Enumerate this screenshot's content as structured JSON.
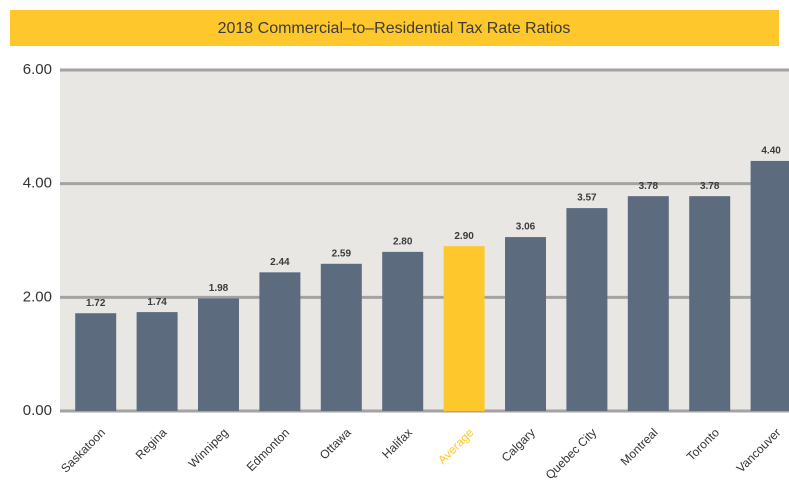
{
  "chart_data": {
    "type": "bar",
    "title": "2018 Commercial–to–Residential Tax Rate Ratios",
    "categories": [
      "Saskatoon",
      "Regina",
      "Winnipeg",
      "Edmonton",
      "Ottawa",
      "Halifax",
      "Average",
      "Calgary",
      "Quebec City",
      "Montreal",
      "Toronto",
      "Vancouver"
    ],
    "values": [
      1.72,
      1.74,
      1.98,
      2.44,
      2.59,
      2.8,
      2.9,
      3.06,
      3.57,
      3.78,
      3.78,
      4.4
    ],
    "value_labels": [
      "1.72",
      "1.74",
      "1.98",
      "2.44",
      "2.59",
      "2.80",
      "2.90",
      "3.06",
      "3.57",
      "3.78",
      "3.78",
      "4.40"
    ],
    "colors": [
      "#5c6b7e",
      "#5c6b7e",
      "#5c6b7e",
      "#5c6b7e",
      "#5c6b7e",
      "#5c6b7e",
      "#fec72c",
      "#5c6b7e",
      "#5c6b7e",
      "#5c6b7e",
      "#5c6b7e",
      "#5c6b7e"
    ],
    "ylim": [
      0,
      6
    ],
    "yticks": [
      {
        "value": 0,
        "label": "0.00"
      },
      {
        "value": 2,
        "label": "2.00"
      },
      {
        "value": 4,
        "label": "4.00"
      },
      {
        "value": 6,
        "label": "6.00"
      }
    ],
    "grid": true
  }
}
